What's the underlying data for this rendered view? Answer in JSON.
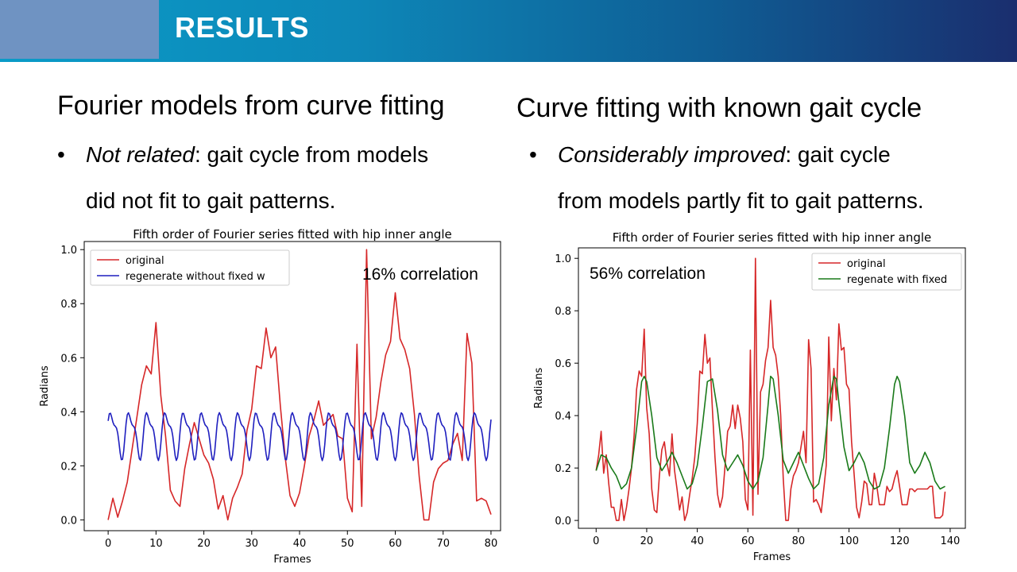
{
  "slide": {
    "title": "RESULTS"
  },
  "left": {
    "heading": "Fourier models from curve fitting",
    "bullet_emph": "Not related",
    "bullet_rest_line1": ": gait cycle from models",
    "bullet_line2": "did not fit to gait patterns."
  },
  "right": {
    "heading": "Curve fitting with known gait cycle",
    "bullet_emph": "Considerably improved",
    "bullet_rest_line1": ": gait cycle",
    "bullet_line2": "from models partly fit to gait patterns."
  },
  "colors": {
    "original": "#d62728",
    "regen_left": "#1f1fbf",
    "regen_right": "#1a7a1a"
  },
  "chart_data": [
    {
      "type": "line",
      "title": "Fifth order of Fourier series fitted with hip inner angle",
      "xlabel": "Frames",
      "ylabel": "Radians",
      "xlim": [
        -5,
        82
      ],
      "ylim": [
        -0.04,
        1.03
      ],
      "xticks": [
        0,
        10,
        20,
        30,
        40,
        50,
        60,
        70,
        80
      ],
      "yticks": [
        0.0,
        0.2,
        0.4,
        0.6,
        0.8,
        1.0
      ],
      "legend": "top-left",
      "annotation": "16% correlation",
      "series": [
        {
          "name": "original",
          "color": "#d62728",
          "x": [
            0,
            1,
            2,
            3,
            4,
            5,
            6,
            7,
            8,
            9,
            10,
            11,
            12,
            13,
            14,
            15,
            16,
            17,
            18,
            19,
            20,
            21,
            22,
            23,
            24,
            25,
            26,
            27,
            28,
            29,
            30,
            31,
            32,
            33,
            34,
            35,
            36,
            37,
            38,
            39,
            40,
            41,
            42,
            43,
            44,
            45,
            46,
            47,
            48,
            49,
            50,
            51,
            52,
            53,
            54,
            55,
            56,
            57,
            58,
            59,
            60,
            61,
            62,
            63,
            64,
            65,
            66,
            67,
            68,
            69,
            70,
            71,
            72,
            73,
            74,
            75,
            76,
            77,
            78,
            79,
            80
          ],
          "y": [
            0.0,
            0.08,
            0.01,
            0.07,
            0.14,
            0.26,
            0.38,
            0.5,
            0.57,
            0.54,
            0.73,
            0.46,
            0.31,
            0.11,
            0.07,
            0.05,
            0.19,
            0.28,
            0.36,
            0.3,
            0.24,
            0.21,
            0.15,
            0.04,
            0.09,
            0.0,
            0.08,
            0.12,
            0.17,
            0.33,
            0.41,
            0.57,
            0.56,
            0.71,
            0.6,
            0.64,
            0.42,
            0.23,
            0.09,
            0.05,
            0.1,
            0.2,
            0.31,
            0.37,
            0.44,
            0.35,
            0.37,
            0.39,
            0.31,
            0.3,
            0.08,
            0.03,
            0.65,
            0.05,
            1.0,
            0.3,
            0.38,
            0.51,
            0.61,
            0.66,
            0.84,
            0.67,
            0.63,
            0.56,
            0.39,
            0.16,
            0.0,
            0.0,
            0.14,
            0.19,
            0.21,
            0.22,
            0.28,
            0.32,
            0.22,
            0.69,
            0.58,
            0.07,
            0.08,
            0.07,
            0.02
          ]
        },
        {
          "name": "regenerate without fixed w",
          "color": "#1f1fbf",
          "formula": "0.32 + 0.075*sin(1.65*x+0.25) + 0.03*sin(3.3*x+1.2)"
        }
      ]
    },
    {
      "type": "line",
      "title": "Fifth order of Fourier series fitted with hip inner angle",
      "xlabel": "Frames",
      "ylabel": "Radians",
      "xlim": [
        -7,
        146
      ],
      "ylim": [
        -0.03,
        1.04
      ],
      "xticks": [
        0,
        20,
        40,
        60,
        80,
        100,
        120,
        140
      ],
      "yticks": [
        0.0,
        0.2,
        0.4,
        0.6,
        0.8,
        1.0
      ],
      "legend": "top-right",
      "annotation": "56% correlation",
      "series": [
        {
          "name": "original",
          "color": "#d62728",
          "x": [
            0,
            1,
            2,
            3,
            4,
            5,
            6,
            7,
            8,
            9,
            10,
            11,
            12,
            13,
            14,
            15,
            16,
            17,
            18,
            19,
            20,
            21,
            22,
            23,
            24,
            25,
            26,
            27,
            28,
            29,
            30,
            31,
            32,
            33,
            34,
            35,
            36,
            37,
            38,
            39,
            40,
            41,
            42,
            43,
            44,
            45,
            46,
            47,
            48,
            49,
            50,
            51,
            52,
            53,
            54,
            55,
            56,
            57,
            58,
            59,
            60,
            61,
            62,
            63,
            64,
            65,
            66,
            67,
            68,
            69,
            70,
            71,
            72,
            73,
            74,
            75,
            76,
            77,
            78,
            79,
            80,
            81,
            82,
            83,
            84,
            85,
            86,
            87,
            88,
            89,
            90,
            91,
            92,
            93,
            94,
            95,
            96,
            97,
            98,
            99,
            100,
            101,
            102,
            103,
            104,
            105,
            106,
            107,
            108,
            109,
            110,
            111,
            112,
            113,
            114,
            115,
            116,
            117,
            118,
            119,
            120,
            121,
            122,
            123,
            124,
            125,
            126,
            127,
            128,
            129,
            130,
            131,
            132,
            133,
            134,
            135,
            136,
            137,
            138
          ],
          "y": [
            0.19,
            0.25,
            0.34,
            0.18,
            0.25,
            0.14,
            0.05,
            0.05,
            0.0,
            0.0,
            0.08,
            0.0,
            0.05,
            0.12,
            0.2,
            0.32,
            0.5,
            0.57,
            0.55,
            0.73,
            0.43,
            0.33,
            0.12,
            0.04,
            0.03,
            0.17,
            0.27,
            0.3,
            0.22,
            0.17,
            0.33,
            0.19,
            0.12,
            0.04,
            0.09,
            0.0,
            0.03,
            0.1,
            0.16,
            0.24,
            0.37,
            0.57,
            0.56,
            0.71,
            0.6,
            0.62,
            0.42,
            0.24,
            0.1,
            0.05,
            0.09,
            0.21,
            0.34,
            0.36,
            0.44,
            0.35,
            0.44,
            0.39,
            0.3,
            0.08,
            0.04,
            0.65,
            0.02,
            1.0,
            0.1,
            0.49,
            0.52,
            0.61,
            0.66,
            0.84,
            0.66,
            0.63,
            0.55,
            0.4,
            0.16,
            0.0,
            0.0,
            0.12,
            0.17,
            0.19,
            0.22,
            0.28,
            0.34,
            0.22,
            0.69,
            0.58,
            0.07,
            0.08,
            0.06,
            0.03,
            0.12,
            0.21,
            0.7,
            0.38,
            0.58,
            0.46,
            0.75,
            0.65,
            0.66,
            0.52,
            0.5,
            0.3,
            0.18,
            0.05,
            0.01,
            0.07,
            0.15,
            0.14,
            0.06,
            0.06,
            0.18,
            0.13,
            0.06,
            0.06,
            0.06,
            0.13,
            0.11,
            0.12,
            0.16,
            0.19,
            0.13,
            0.06,
            0.06,
            0.06,
            0.12,
            0.12,
            0.11,
            0.12,
            0.12,
            0.12,
            0.12,
            0.12,
            0.13,
            0.13,
            0.01,
            0.01,
            0.01,
            0.02,
            0.11
          ]
        },
        {
          "name": "regenate with fixed",
          "color": "#1a7a1a",
          "x": [
            0,
            2,
            4,
            6,
            8,
            10,
            12,
            14,
            16,
            18,
            19,
            20,
            22,
            24,
            26,
            28,
            30,
            32,
            34,
            36,
            38,
            40,
            42,
            44,
            46,
            48,
            50,
            52,
            54,
            56,
            58,
            60,
            62,
            64,
            66,
            68,
            69,
            70,
            72,
            74,
            76,
            78,
            80,
            82,
            84,
            86,
            88,
            90,
            92,
            94,
            95,
            96,
            98,
            100,
            102,
            104,
            106,
            108,
            110,
            112,
            114,
            116,
            118,
            119,
            120,
            122,
            124,
            126,
            128,
            130,
            132,
            134,
            136,
            138
          ],
          "y": [
            0.19,
            0.25,
            0.24,
            0.2,
            0.17,
            0.12,
            0.14,
            0.2,
            0.35,
            0.53,
            0.55,
            0.53,
            0.4,
            0.24,
            0.19,
            0.22,
            0.26,
            0.22,
            0.17,
            0.12,
            0.14,
            0.21,
            0.36,
            0.53,
            0.54,
            0.42,
            0.25,
            0.19,
            0.22,
            0.25,
            0.21,
            0.15,
            0.12,
            0.15,
            0.24,
            0.44,
            0.55,
            0.54,
            0.4,
            0.23,
            0.18,
            0.22,
            0.26,
            0.21,
            0.16,
            0.12,
            0.14,
            0.24,
            0.44,
            0.55,
            0.54,
            0.45,
            0.28,
            0.19,
            0.22,
            0.26,
            0.22,
            0.15,
            0.12,
            0.13,
            0.2,
            0.35,
            0.52,
            0.55,
            0.53,
            0.4,
            0.22,
            0.18,
            0.21,
            0.26,
            0.22,
            0.15,
            0.12,
            0.13
          ]
        }
      ]
    }
  ]
}
